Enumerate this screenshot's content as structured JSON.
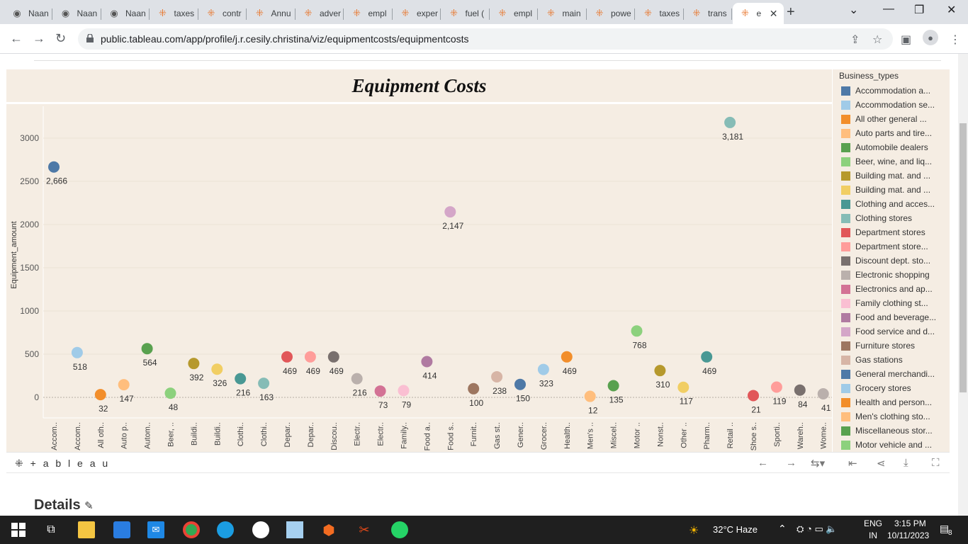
{
  "browser": {
    "tabs": [
      {
        "label": "Naan"
      },
      {
        "label": "Naan"
      },
      {
        "label": "Naan"
      },
      {
        "label": "taxes"
      },
      {
        "label": "contr"
      },
      {
        "label": "Annu"
      },
      {
        "label": "adver"
      },
      {
        "label": "empl"
      },
      {
        "label": "exper"
      },
      {
        "label": "fuel ("
      },
      {
        "label": "empl"
      },
      {
        "label": "main"
      },
      {
        "label": "powe"
      },
      {
        "label": "taxes"
      },
      {
        "label": "trans"
      },
      {
        "label": "e"
      }
    ],
    "url": "public.tableau.com/app/profile/j.r.cesily.christina/viz/equipmentcosts/equipmentcosts"
  },
  "viz": {
    "header_partial": "Equipment costs",
    "title": "Equipment Costs",
    "y_axis_label": "Equipment_amount",
    "legend_title": "Business_types",
    "legend": [
      {
        "label": "Accommodation a...",
        "color": "#4e79a7"
      },
      {
        "label": "Accommodation se...",
        "color": "#a0cbe8"
      },
      {
        "label": "All other general ...",
        "color": "#f28e2b"
      },
      {
        "label": "Auto parts and tire...",
        "color": "#ffbe7d"
      },
      {
        "label": "Automobile dealers",
        "color": "#59a14f"
      },
      {
        "label": "Beer, wine, and liq...",
        "color": "#8cd17d"
      },
      {
        "label": "Building mat. and ...",
        "color": "#b6992d"
      },
      {
        "label": "Building mat. and ...",
        "color": "#f1ce63"
      },
      {
        "label": "Clothing and acces...",
        "color": "#499894"
      },
      {
        "label": "Clothing stores",
        "color": "#86bcb6"
      },
      {
        "label": "Department stores",
        "color": "#e15759"
      },
      {
        "label": "Department store...",
        "color": "#ff9d9a"
      },
      {
        "label": "Discount dept. sto...",
        "color": "#79706e"
      },
      {
        "label": "Electronic shopping",
        "color": "#bab0ac"
      },
      {
        "label": "Electronics and ap...",
        "color": "#d37295"
      },
      {
        "label": "Family clothing st...",
        "color": "#fabfd2"
      },
      {
        "label": "Food and beverage...",
        "color": "#b07aa1"
      },
      {
        "label": "Food service and d...",
        "color": "#d4a6c8"
      },
      {
        "label": "Furniture stores",
        "color": "#9d7660"
      },
      {
        "label": "Gas stations",
        "color": "#d7b5a6"
      },
      {
        "label": "General merchandi...",
        "color": "#4e79a7"
      },
      {
        "label": "Grocery stores",
        "color": "#a0cbe8"
      },
      {
        "label": "Health and person...",
        "color": "#f28e2b"
      },
      {
        "label": "Men's clothing sto...",
        "color": "#ffbe7d"
      },
      {
        "label": "Miscellaneous stor...",
        "color": "#59a14f"
      },
      {
        "label": "Motor vehicle and ...",
        "color": "#8cd17d"
      }
    ],
    "footer_logo": "+ a b l e a u",
    "details_heading": "Details"
  },
  "chart_data": {
    "type": "scatter",
    "title": "Equipment Costs",
    "ylabel": "Equipment_amount",
    "ylim": [
      -200,
      3350
    ],
    "yticks": [
      0,
      500,
      1000,
      1500,
      2000,
      2500,
      3000
    ],
    "categories": [
      "Accom..",
      "Accom..",
      "All oth..",
      "Auto p..",
      "Autom..",
      "Beer, ..",
      "Buildi..",
      "Buildi..",
      "Clothi..",
      "Clothi..",
      "Depar..",
      "Depar..",
      "Discou..",
      "Electr..",
      "Electr..",
      "Family..",
      "Food a..",
      "Food s..",
      "Furnit..",
      "Gas st..",
      "Gener..",
      "Grocer..",
      "Health..",
      "Men's ..",
      "Miscel..",
      "Motor ..",
      "Nonst..",
      "Other ..",
      "Pharm..",
      "Retail ..",
      "Shoe s..",
      "Sporti..",
      "Wareh..",
      "Wome.."
    ],
    "values": [
      2666,
      518,
      32,
      147,
      564,
      48,
      392,
      326,
      216,
      163,
      469,
      469,
      469,
      216,
      73,
      79,
      414,
      2147,
      100,
      238,
      150,
      323,
      469,
      12,
      135,
      768,
      310,
      117,
      469,
      3181,
      21,
      119,
      84,
      41
    ],
    "value_labels": [
      "2,666",
      "518",
      "32",
      "147",
      "564",
      "48",
      "392",
      "326",
      "216",
      "163",
      "469",
      "469",
      "469",
      "216",
      "73",
      "79",
      "414",
      "2,147",
      "100",
      "238",
      "150",
      "323",
      "469",
      "12",
      "135",
      "768",
      "310",
      "117",
      "469",
      "3,181",
      "21",
      "119",
      "84",
      "41"
    ],
    "colors": [
      "#4e79a7",
      "#a0cbe8",
      "#f28e2b",
      "#ffbe7d",
      "#59a14f",
      "#8cd17d",
      "#b6992d",
      "#f1ce63",
      "#499894",
      "#86bcb6",
      "#e15759",
      "#ff9d9a",
      "#79706e",
      "#bab0ac",
      "#d37295",
      "#fabfd2",
      "#b07aa1",
      "#d4a6c8",
      "#9d7660",
      "#d7b5a6",
      "#4e79a7",
      "#a0cbe8",
      "#f28e2b",
      "#ffbe7d",
      "#59a14f",
      "#8cd17d",
      "#b6992d",
      "#f1ce63",
      "#499894",
      "#86bcb6",
      "#e15759",
      "#ff9d9a",
      "#79706e",
      "#bab0ac"
    ],
    "grid": true
  },
  "taskbar": {
    "weather": "32°C  Haze",
    "lang": "ENG",
    "region": "IN",
    "time": "3:15 PM",
    "date": "10/11/2023",
    "notif_count": "8"
  }
}
